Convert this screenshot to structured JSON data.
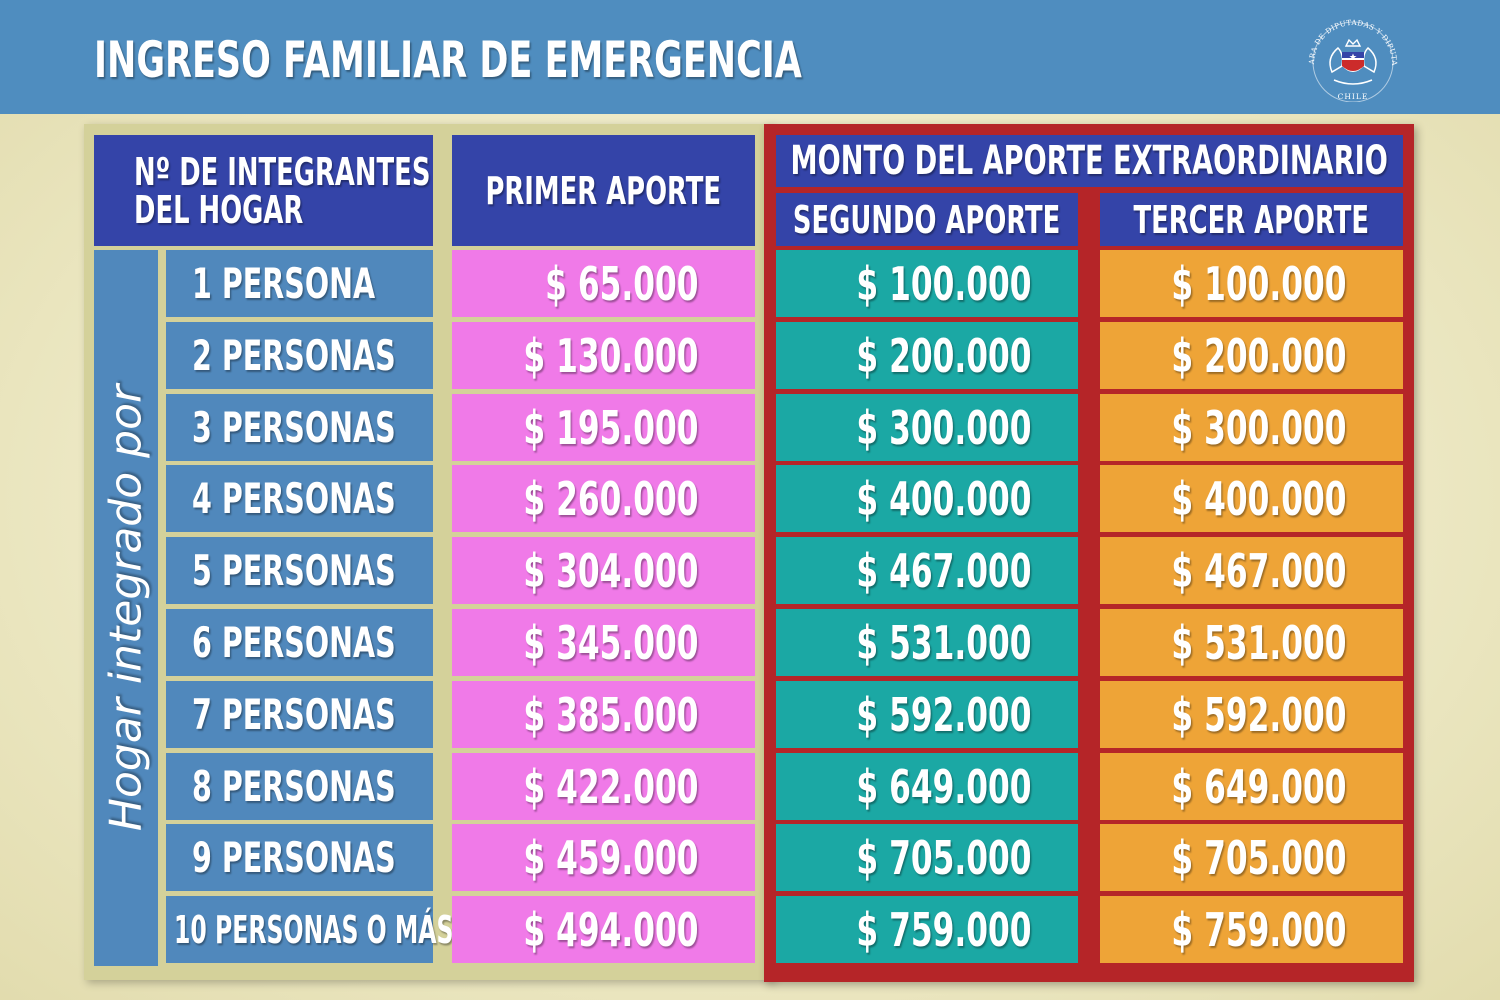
{
  "header": {
    "title": "INGRESO FAMILIAR DE EMERGENCIA",
    "seal_text_top": "CÁMARA DE DIPUTADAS Y DIPUTADOS",
    "seal_text_bottom": "CHILE"
  },
  "columns": {
    "integrantes_line1": "Nº DE INTEGRANTES",
    "integrantes_line2": "DEL HOGAR",
    "primer": "PRIMER APORTE",
    "monto_group": "MONTO DEL APORTE EXTRAORDINARIO",
    "segundo": "SEGUNDO APORTE",
    "tercer": "TERCER APORTE"
  },
  "row_group_label": "Hogar integrado por",
  "rows": [
    {
      "label": "1 PERSONA",
      "primer": "$ 65.000",
      "segundo": "$ 100.000",
      "tercer": "$ 100.000"
    },
    {
      "label": "2 PERSONAS",
      "primer": "$ 130.000",
      "segundo": "$ 200.000",
      "tercer": "$ 200.000"
    },
    {
      "label": "3 PERSONAS",
      "primer": "$ 195.000",
      "segundo": "$ 300.000",
      "tercer": "$ 300.000"
    },
    {
      "label": "4 PERSONAS",
      "primer": "$ 260.000",
      "segundo": "$ 400.000",
      "tercer": "$ 400.000"
    },
    {
      "label": "5 PERSONAS",
      "primer": "$ 304.000",
      "segundo": "$ 467.000",
      "tercer": "$ 467.000"
    },
    {
      "label": "6 PERSONAS",
      "primer": "$ 345.000",
      "segundo": "$ 531.000",
      "tercer": "$ 531.000"
    },
    {
      "label": "7 PERSONAS",
      "primer": "$ 385.000",
      "segundo": "$ 592.000",
      "tercer": "$ 592.000"
    },
    {
      "label": "8 PERSONAS",
      "primer": "$ 422.000",
      "segundo": "$ 649.000",
      "tercer": "$ 649.000"
    },
    {
      "label": "9 PERSONAS",
      "primer": "$ 459.000",
      "segundo": "$ 705.000",
      "tercer": "$ 705.000"
    },
    {
      "label": "10 PERSONAS O MÁS",
      "primer": "$ 494.000",
      "segundo": "$ 759.000",
      "tercer": "$ 759.000"
    }
  ],
  "colors": {
    "header_bg": "#4f8dbf",
    "navy": "#3444a8",
    "row_label": "#5088bc",
    "primer": "#f07ae8",
    "segundo": "#1ba8a4",
    "tercer": "#eea437",
    "frame_red": "#b52528"
  }
}
